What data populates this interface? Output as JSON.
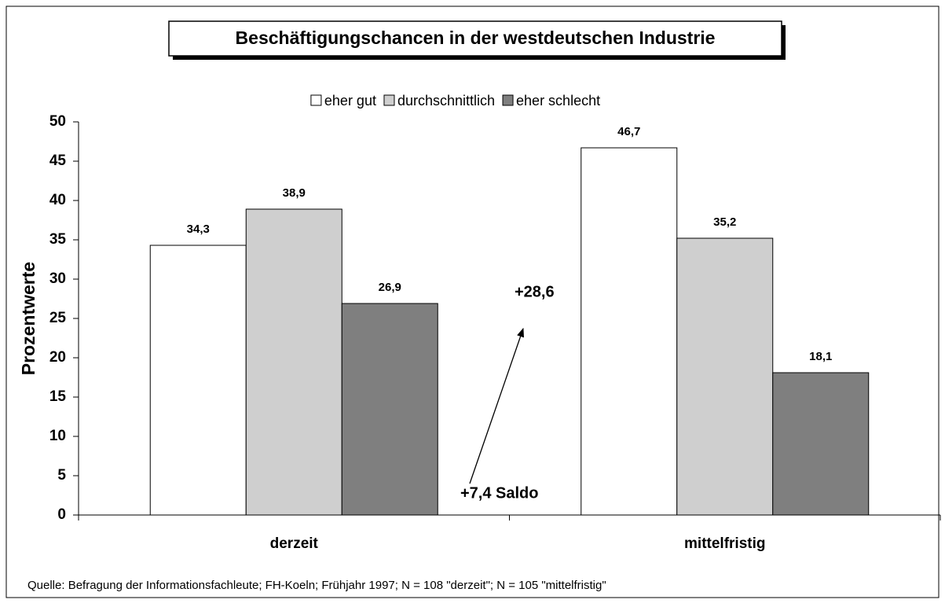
{
  "chart_data": {
    "type": "bar",
    "title": "Beschäftigungschancen in der westdeutschen Industrie",
    "y_label": "Prozentwerte",
    "categories": [
      "derzeit",
      "mittelfristig"
    ],
    "series": [
      {
        "name": "eher gut",
        "color": "#ffffff",
        "values": [
          34.3,
          46.7
        ],
        "value_labels": [
          "34,3",
          "46,7"
        ]
      },
      {
        "name": "durchschnittlich",
        "color": "#cfcfcf",
        "values": [
          38.9,
          35.2
        ],
        "value_labels": [
          "38,9",
          "35,2"
        ]
      },
      {
        "name": "eher schlecht",
        "color": "#7f7f7f",
        "values": [
          26.9,
          18.1
        ],
        "value_labels": [
          "26,9",
          "18,1"
        ]
      }
    ],
    "ylim": [
      0,
      50
    ],
    "yticks": [
      0,
      5,
      10,
      15,
      20,
      25,
      30,
      35,
      40,
      45,
      50
    ],
    "grid": false,
    "annotations": [
      "+28,6",
      "+7,4 Saldo"
    ],
    "source": "Quelle: Befragung der Informationsfachleute; FH-Koeln; Frühjahr 1997; N = 108 \"derzeit\"; N = 105 \"mittelfristig\""
  }
}
